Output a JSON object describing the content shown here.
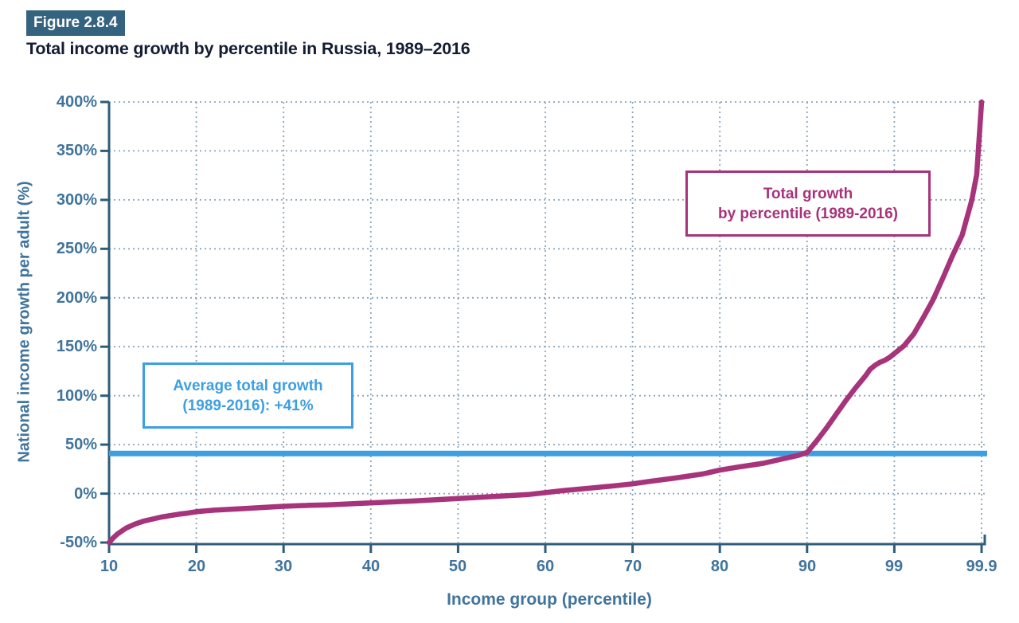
{
  "figure": {
    "label": "Figure 2.8.4",
    "title": "Total income growth by percentile in Russia, 1989–2016"
  },
  "colors": {
    "figure_label_bg": "#34637f",
    "figure_label_text": "#ffffff",
    "title_text": "#131c33",
    "axis": "#2c5d7d",
    "tick_label": "#40749c",
    "grid_dots": "#8aa5ba",
    "curve": "#a7337b",
    "average_line": "#3d9fe2"
  },
  "chart_data": {
    "type": "line",
    "title": "Total income growth by percentile in Russia, 1989–2016",
    "xlabel": "Income group (percentile)",
    "ylabel": "National income growth per adult (%)",
    "x_tick_labels": [
      "10",
      "20",
      "30",
      "40",
      "50",
      "60",
      "70",
      "80",
      "90",
      "99",
      "99.9"
    ],
    "x_tick_values": [
      10,
      20,
      30,
      40,
      50,
      60,
      70,
      80,
      90,
      99,
      99.9
    ],
    "x_axis_note": "piecewise scale: equal pixel width per segment 10-20-...-90-99-99.9",
    "y_tick_labels": [
      "400%",
      "350%",
      "300%",
      "250%",
      "200%",
      "150%",
      "100%",
      "50%",
      "0%",
      "-50%"
    ],
    "y_tick_values": [
      400,
      350,
      300,
      250,
      200,
      150,
      100,
      50,
      0,
      -50
    ],
    "ylim": [
      -50,
      400
    ],
    "grid": "dotted",
    "legend_position": "none",
    "average_line": {
      "value": 41,
      "label_lines": [
        "Average total growth",
        "(1989-2016): +41%"
      ]
    },
    "series": [
      {
        "name": "Total growth by percentile (1989-2016)",
        "label_lines": [
          "Total growth",
          "by percentile (1989-2016)"
        ],
        "points": [
          [
            10,
            -50
          ],
          [
            10.5,
            -45
          ],
          [
            11,
            -41
          ],
          [
            12,
            -35
          ],
          [
            13,
            -31
          ],
          [
            14,
            -28
          ],
          [
            15,
            -26
          ],
          [
            16,
            -24
          ],
          [
            17,
            -22.5
          ],
          [
            18,
            -21
          ],
          [
            19,
            -20
          ],
          [
            20,
            -18.5
          ],
          [
            22,
            -17
          ],
          [
            25,
            -15.5
          ],
          [
            28,
            -14
          ],
          [
            30,
            -13
          ],
          [
            33,
            -12
          ],
          [
            35,
            -11.5
          ],
          [
            40,
            -9.5
          ],
          [
            45,
            -7.5
          ],
          [
            50,
            -5
          ],
          [
            55,
            -2.5
          ],
          [
            58,
            -1
          ],
          [
            60,
            1
          ],
          [
            62,
            3
          ],
          [
            65,
            5.5
          ],
          [
            68,
            8
          ],
          [
            70,
            10
          ],
          [
            72,
            12.5
          ],
          [
            75,
            16
          ],
          [
            78,
            20
          ],
          [
            80,
            24
          ],
          [
            82,
            27
          ],
          [
            85,
            31
          ],
          [
            87,
            35
          ],
          [
            89,
            39
          ],
          [
            90,
            42
          ],
          [
            91,
            54
          ],
          [
            92,
            67
          ],
          [
            93,
            81
          ],
          [
            94,
            95
          ],
          [
            95,
            108
          ],
          [
            95.5,
            114
          ],
          [
            96,
            120
          ],
          [
            96.5,
            127
          ],
          [
            97,
            131
          ],
          [
            97.5,
            134
          ],
          [
            98,
            136
          ],
          [
            98.5,
            139
          ],
          [
            99,
            143
          ],
          [
            99.1,
            151
          ],
          [
            99.2,
            163
          ],
          [
            99.3,
            180
          ],
          [
            99.4,
            198
          ],
          [
            99.5,
            220
          ],
          [
            99.6,
            243
          ],
          [
            99.7,
            264
          ],
          [
            99.8,
            300
          ],
          [
            99.85,
            326
          ],
          [
            99.9,
            400
          ]
        ]
      }
    ]
  }
}
